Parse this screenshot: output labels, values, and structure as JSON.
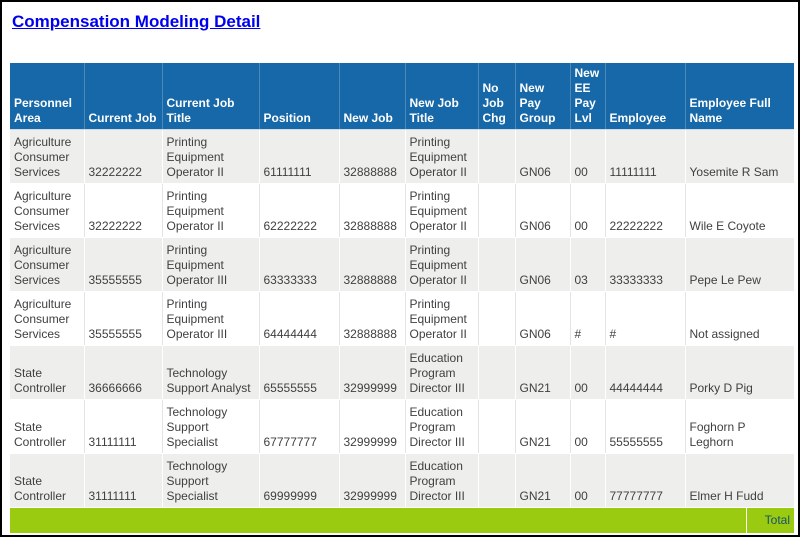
{
  "page": {
    "title": "Compensation Modeling Detail"
  },
  "colors": {
    "header_bg": "#1768A8",
    "header_divider": "#4E8AB8",
    "stripe_bg": "#EEEEEC",
    "total_bg": "#9ACB10",
    "total_text": "#17536E",
    "title_color": "#0000F0",
    "cell_text": "#404040"
  },
  "table": {
    "columns": [
      "Personnel Area",
      "Current Job",
      "Current Job Title",
      "Position",
      "New Job",
      "New Job Title",
      "No Job Chg",
      "New Pay Group",
      "New EE Pay Lvl",
      "Employee",
      "Employee Full Name"
    ],
    "rows": [
      [
        "Agriculture Consumer Services",
        "32222222",
        "Printing Equipment Operator II",
        "61111111",
        "32888888",
        "Printing Equipment Operator II",
        "",
        "GN06",
        "00",
        "11111111",
        "Yosemite R Sam"
      ],
      [
        "Agriculture Consumer Services",
        "32222222",
        "Printing Equipment Operator II",
        "62222222",
        "32888888",
        "Printing Equipment Operator II",
        "",
        "GN06",
        "00",
        "22222222",
        "Wile E Coyote"
      ],
      [
        "Agriculture Consumer Services",
        "35555555",
        "Printing Equipment Operator III",
        "63333333",
        "32888888",
        "Printing Equipment Operator II",
        "",
        "GN06",
        "03",
        "33333333",
        "Pepe Le Pew"
      ],
      [
        "Agriculture Consumer Services",
        "35555555",
        "Printing Equipment Operator III",
        "64444444",
        "32888888",
        "Printing Equipment Operator II",
        "",
        "GN06",
        "#",
        "#",
        "Not assigned"
      ],
      [
        "State Controller",
        "36666666",
        "Technology Support Analyst",
        "65555555",
        "32999999",
        "Education Program Director III",
        "",
        "GN21",
        "00",
        "44444444",
        "Porky D Pig"
      ],
      [
        "State Controller",
        "31111111",
        "Technology Support Specialist",
        "67777777",
        "32999999",
        "Education Program Director III",
        "",
        "GN21",
        "00",
        "55555555",
        "Foghorn P Leghorn"
      ],
      [
        "State Controller",
        "31111111",
        "Technology Support Specialist",
        "69999999",
        "32999999",
        "Education Program Director III",
        "",
        "GN21",
        "00",
        "77777777",
        "Elmer H Fudd"
      ]
    ],
    "total_label": "Total"
  }
}
